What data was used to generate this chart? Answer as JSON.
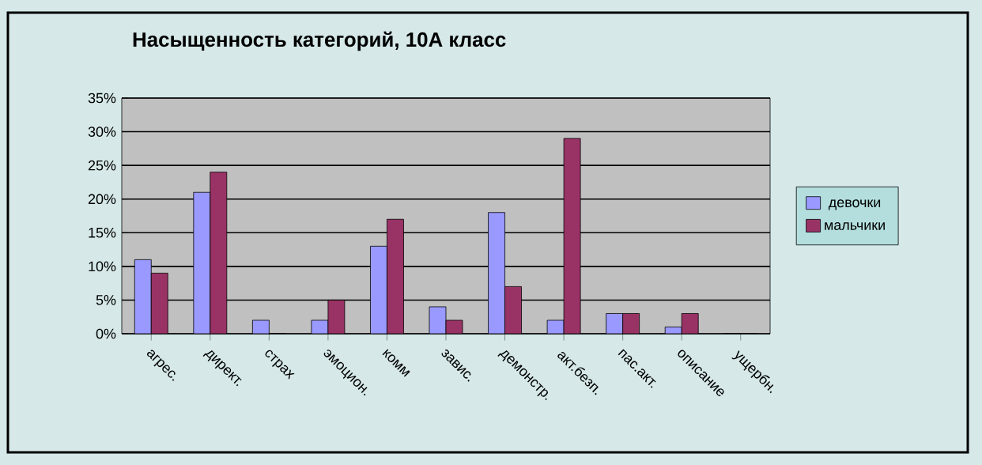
{
  "chart_data": {
    "type": "bar",
    "title": "Насыщенность категорий, 10А класс",
    "categories": [
      "агрес.",
      "директ.",
      "страх",
      "эмоцион.",
      "комм",
      "завис.",
      "демонстр.",
      "акт.безп.",
      "пас.акт.",
      "описание",
      "ущербн."
    ],
    "series": [
      {
        "name": "девочки",
        "color": "#9999ff",
        "values": [
          11,
          21,
          2,
          2,
          13,
          4,
          18,
          2,
          3,
          1,
          0
        ]
      },
      {
        "name": "мальчики",
        "color": "#993366",
        "values": [
          9,
          24,
          0,
          5,
          17,
          2,
          7,
          29,
          3,
          3,
          0
        ]
      }
    ],
    "ylim": [
      0,
      35
    ],
    "yticks": [
      {
        "value": 0,
        "label": "0%"
      },
      {
        "value": 5,
        "label": "5%"
      },
      {
        "value": 10,
        "label": "10%"
      },
      {
        "value": 15,
        "label": "15%"
      },
      {
        "value": 20,
        "label": "20%"
      },
      {
        "value": 25,
        "label": "25%"
      },
      {
        "value": 30,
        "label": "30%"
      },
      {
        "value": 35,
        "label": "35%"
      }
    ],
    "grid": "y",
    "legend": "right"
  }
}
